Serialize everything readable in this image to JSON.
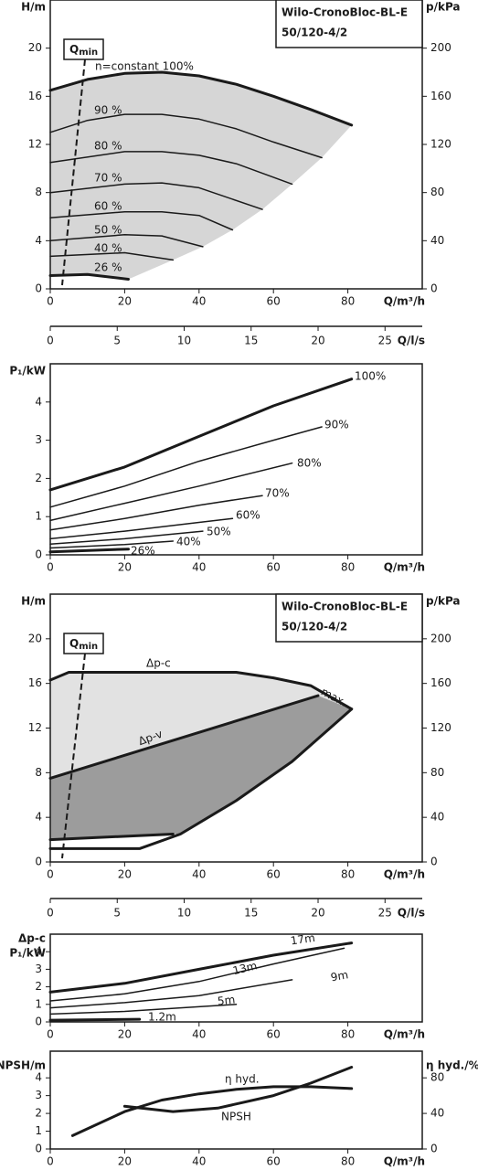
{
  "chart_data": [
    {
      "type": "line",
      "title": [
        "Wilo-CronoBloc-BL-E",
        "50/120-4/2"
      ],
      "qmin": {
        "symbol": "Q",
        "subscript": "min"
      },
      "ylabel": "H/m",
      "y2label": "p/kPa",
      "xlabel": "Q/m³/h",
      "xlim": [
        0,
        100
      ],
      "xticks": [
        0,
        20,
        40,
        60,
        80
      ],
      "ylim": [
        0,
        24
      ],
      "yticks": [
        0,
        4,
        8,
        12,
        16,
        20
      ],
      "y2lim": [
        0,
        240
      ],
      "y2ticks": [
        0,
        40,
        80,
        120,
        160,
        200
      ],
      "x2label": "Q/l/s",
      "x2lim": [
        0,
        27.78
      ],
      "x2ticks": [
        0,
        5,
        10,
        15,
        20,
        25
      ],
      "color": "#1a1a1a",
      "fill_color": "#d6d6d6",
      "fill": "operating-range",
      "series": [
        {
          "name": "n=constant 100%",
          "width": 3,
          "x": [
            0,
            10,
            20,
            30,
            40,
            50,
            60,
            70,
            81
          ],
          "values": [
            16.5,
            17.4,
            17.9,
            18,
            17.7,
            17,
            16,
            14.9,
            13.6
          ]
        },
        {
          "name": "90 %",
          "width": 1.5,
          "x": [
            0,
            10,
            20,
            30,
            40,
            50,
            60,
            73
          ],
          "values": [
            13,
            14,
            14.5,
            14.5,
            14.1,
            13.3,
            12.2,
            10.9
          ]
        },
        {
          "name": "80 %",
          "width": 1.5,
          "x": [
            0,
            20,
            30,
            40,
            50,
            65
          ],
          "values": [
            10.5,
            11.4,
            11.4,
            11.1,
            10.4,
            8.7
          ]
        },
        {
          "name": "70 %",
          "width": 1.5,
          "x": [
            0,
            20,
            30,
            40,
            57
          ],
          "values": [
            8,
            8.7,
            8.8,
            8.4,
            6.6
          ]
        },
        {
          "name": "60 %",
          "width": 1.5,
          "x": [
            0,
            20,
            30,
            40,
            49
          ],
          "values": [
            5.9,
            6.4,
            6.4,
            6.1,
            4.9
          ]
        },
        {
          "name": "50 %",
          "width": 1.5,
          "x": [
            0,
            20,
            30,
            41
          ],
          "values": [
            4,
            4.5,
            4.4,
            3.5
          ]
        },
        {
          "name": "40 %",
          "width": 1.5,
          "x": [
            0,
            20,
            33
          ],
          "values": [
            2.7,
            3,
            2.4
          ]
        },
        {
          "name": "26 %",
          "width": 3,
          "x": [
            0,
            10,
            21
          ],
          "values": [
            1.1,
            1.2,
            0.8
          ]
        }
      ]
    },
    {
      "type": "line",
      "ylabel": "P₁/kW",
      "xlabel": "Q/m³/h",
      "xlim": [
        0,
        100
      ],
      "xticks": [
        0,
        20,
        40,
        60,
        80
      ],
      "ylim": [
        0,
        5
      ],
      "yticks": [
        0,
        1,
        2,
        3,
        4
      ],
      "color": "#1a1a1a",
      "series": [
        {
          "name": "100%",
          "width": 3,
          "x": [
            0,
            20,
            40,
            60,
            81
          ],
          "values": [
            1.7,
            2.3,
            3.1,
            3.9,
            4.6
          ]
        },
        {
          "name": "90%",
          "width": 1.5,
          "x": [
            0,
            20,
            40,
            60,
            73
          ],
          "values": [
            1.25,
            1.8,
            2.45,
            3,
            3.35
          ]
        },
        {
          "name": "80%",
          "width": 1.5,
          "x": [
            0,
            20,
            40,
            65
          ],
          "values": [
            0.9,
            1.35,
            1.8,
            2.4
          ]
        },
        {
          "name": "70%",
          "width": 1.5,
          "x": [
            0,
            20,
            40,
            57
          ],
          "values": [
            0.65,
            0.95,
            1.3,
            1.55
          ]
        },
        {
          "name": "60%",
          "width": 1.5,
          "x": [
            0,
            20,
            40,
            49
          ],
          "values": [
            0.42,
            0.62,
            0.85,
            0.95
          ]
        },
        {
          "name": "50%",
          "width": 1.5,
          "x": [
            0,
            20,
            41
          ],
          "values": [
            0.28,
            0.42,
            0.62
          ]
        },
        {
          "name": "40%",
          "width": 1.5,
          "x": [
            0,
            20,
            33
          ],
          "values": [
            0.18,
            0.27,
            0.36
          ]
        },
        {
          "name": "26%",
          "width": 3,
          "x": [
            0,
            21
          ],
          "values": [
            0.08,
            0.15
          ]
        }
      ]
    },
    {
      "type": "line",
      "title": [
        "Wilo-CronoBloc-BL-E",
        "50/120-4/2"
      ],
      "qmin": {
        "symbol": "Q",
        "subscript": "min"
      },
      "ylabel": "H/m",
      "y2label": "p/kPa",
      "xlabel": "Q/m³/h",
      "xlim": [
        0,
        100
      ],
      "xticks": [
        0,
        20,
        40,
        60,
        80
      ],
      "ylim": [
        0,
        24
      ],
      "yticks": [
        0,
        4,
        8,
        12,
        16,
        20
      ],
      "y2lim": [
        0,
        240
      ],
      "y2ticks": [
        0,
        40,
        80,
        120,
        160,
        200
      ],
      "x2label": "Q/l/s",
      "x2lim": [
        0,
        27.78
      ],
      "x2ticks": [
        0,
        5,
        10,
        15,
        20,
        25
      ],
      "annotation": "max.",
      "color": "#1a1a1a",
      "fill_color": "#e2e2e2",
      "fill_color_dark": "#9c9c9c",
      "fill": "control-range",
      "series": [
        {
          "name": "Δp-c",
          "width": 3,
          "x": [
            0,
            5,
            50,
            60,
            70,
            81
          ],
          "values": [
            16.3,
            17,
            17,
            16.5,
            15.8,
            13.7
          ]
        },
        {
          "name": "Δp-v",
          "width": 3,
          "x": [
            0,
            72
          ],
          "values": [
            7.5,
            14.9
          ]
        },
        {
          "width": 3,
          "x": [
            0,
            33
          ],
          "values": [
            2,
            2.5
          ]
        },
        {
          "width": 3,
          "x": [
            0,
            24,
            35,
            50,
            65,
            81
          ],
          "values": [
            1.2,
            1.2,
            2.5,
            5.5,
            9,
            13.7
          ]
        }
      ]
    },
    {
      "type": "line",
      "ylabel": [
        "Δp-c",
        "P₁/kW"
      ],
      "xlabel": "Q/m³/h",
      "xlim": [
        0,
        100
      ],
      "xticks": [
        0,
        20,
        40,
        60,
        80
      ],
      "ylim": [
        0,
        5
      ],
      "yticks": [
        0,
        1,
        2,
        3,
        4
      ],
      "color": "#1a1a1a",
      "series": [
        {
          "name": "17m",
          "width": 3,
          "x": [
            0,
            20,
            40,
            60,
            81
          ],
          "values": [
            1.7,
            2.2,
            3,
            3.8,
            4.5
          ]
        },
        {
          "name": "13m",
          "width": 1.5,
          "x": [
            0,
            20,
            40,
            60,
            79
          ],
          "values": [
            1.2,
            1.6,
            2.3,
            3.3,
            4.2
          ]
        },
        {
          "name": "9m",
          "width": 1.5,
          "x": [
            0,
            20,
            40,
            65
          ],
          "values": [
            0.8,
            1.1,
            1.5,
            2.4
          ]
        },
        {
          "name": "5m",
          "width": 1.5,
          "x": [
            0,
            20,
            50
          ],
          "values": [
            0.45,
            0.6,
            1
          ]
        },
        {
          "name": "1.2m",
          "width": 3,
          "x": [
            0,
            24
          ],
          "values": [
            0.1,
            0.15
          ]
        }
      ]
    },
    {
      "type": "line",
      "ylabel": "NPSH/m",
      "y2label": "η hyd./%",
      "xlabel": "Q/m³/h",
      "xlim": [
        0,
        100
      ],
      "xticks": [
        0,
        20,
        40,
        60,
        80
      ],
      "ylim": [
        0,
        5.5
      ],
      "yticks": [
        0,
        1,
        2,
        3,
        4
      ],
      "y2lim": [
        0,
        110
      ],
      "y2ticks": [
        0,
        40,
        80
      ],
      "color": "#1a1a1a",
      "series": [
        {
          "name": "η hyd.",
          "axis": "y2",
          "width": 3,
          "x": [
            6,
            20,
            30,
            40,
            50,
            60,
            70,
            81
          ],
          "values": [
            15,
            42,
            55,
            62,
            67,
            70,
            70,
            68
          ]
        },
        {
          "name": "NPSH",
          "width": 3,
          "x": [
            20,
            33,
            45,
            60,
            70,
            81
          ],
          "values": [
            2.4,
            2.1,
            2.3,
            3,
            3.7,
            4.6
          ]
        }
      ]
    }
  ]
}
